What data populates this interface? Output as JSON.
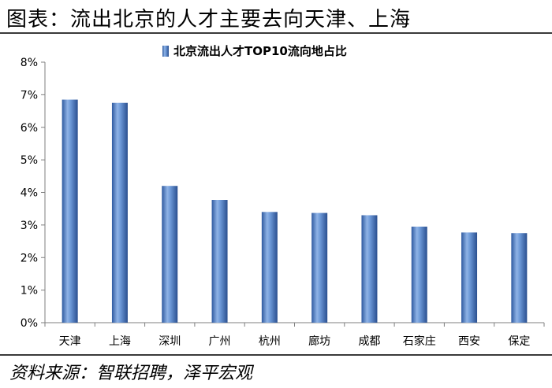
{
  "page": {
    "title": "图表：流出北京的人才主要去向天津、上海",
    "source": "资料来源：智联招聘，泽平宏观"
  },
  "chart_data": {
    "type": "bar",
    "categories": [
      "天津",
      "上海",
      "深圳",
      "广州",
      "杭州",
      "廊坊",
      "成都",
      "石家庄",
      "西安",
      "保定"
    ],
    "series": [
      {
        "name": "北京流出人才TOP10流向地占比",
        "values": [
          6.85,
          6.75,
          4.2,
          3.77,
          3.4,
          3.37,
          3.3,
          2.95,
          2.77,
          2.75
        ]
      }
    ],
    "ylim": [
      0,
      8
    ],
    "yticks": [
      "0%",
      "1%",
      "2%",
      "3%",
      "4%",
      "5%",
      "6%",
      "7%",
      "8%"
    ],
    "xlabel": "",
    "ylabel": "",
    "legend": "top-center",
    "grid": false,
    "bar_color": "#4F7BC0"
  }
}
